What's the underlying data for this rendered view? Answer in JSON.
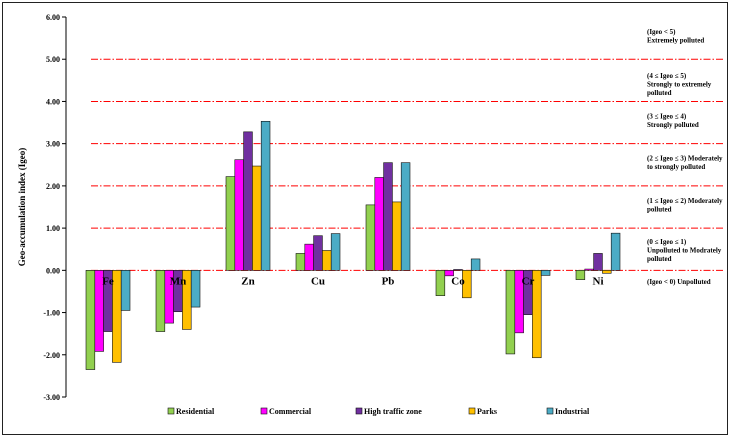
{
  "chart_data": {
    "type": "bar",
    "ylabel": "Geo-accumulation index (Igeo)",
    "xlabel": "",
    "title": "",
    "ylim": [
      -3,
      6
    ],
    "yticks": [
      "6.00",
      "5.00",
      "4.00",
      "3.00",
      "2.00",
      "1.00",
      "0.00",
      "-1.00",
      "-2.00",
      "-3.00"
    ],
    "categories": [
      "Fe",
      "Mn",
      "Zn",
      "Cu",
      "Pb",
      "Co",
      "Cr",
      "Ni"
    ],
    "series": [
      {
        "name": "Residential",
        "color": "#92d050",
        "values": [
          -2.35,
          -1.45,
          2.22,
          0.4,
          1.55,
          -0.6,
          -1.98,
          -0.22
        ]
      },
      {
        "name": "Commercial",
        "color": "#ff00ff",
        "values": [
          -1.92,
          -1.25,
          2.62,
          0.62,
          2.2,
          -0.13,
          -1.48,
          0.03
        ]
      },
      {
        "name": "High traffic zone",
        "color": "#7030a0",
        "values": [
          -1.45,
          -0.98,
          3.28,
          0.82,
          2.55,
          0.02,
          -1.05,
          0.4
        ]
      },
      {
        "name": "Parks",
        "color": "#ffc000",
        "values": [
          -2.18,
          -1.4,
          2.47,
          0.47,
          1.62,
          -0.65,
          -2.07,
          -0.07
        ]
      },
      {
        "name": "Industrial",
        "color": "#4bacc6",
        "values": [
          -0.95,
          -0.87,
          3.53,
          0.87,
          2.55,
          0.27,
          -0.12,
          0.88
        ]
      }
    ],
    "thresholds": [
      0,
      1,
      2,
      3,
      4,
      5
    ],
    "threshold_color": "#ff0000",
    "grid": false,
    "legend_position": "bottom",
    "annotations": [
      {
        "y": 5.6,
        "lines": [
          "(Igeo < 5)",
          "Extremely polluted"
        ]
      },
      {
        "y": 4.55,
        "lines": [
          "(4 ≤ Igeo ≤ 5)",
          "Strongly to extremely",
          "polluted"
        ]
      },
      {
        "y": 3.6,
        "lines": [
          "(3 ≤ Igeo ≤ 4)",
          "Strongly polluted"
        ]
      },
      {
        "y": 2.6,
        "lines": [
          "(2 ≤ Igeo ≤ 3) Moderately",
          "to strongly polluted"
        ]
      },
      {
        "y": 1.6,
        "lines": [
          "(1 ≤ Igeo ≤ 2) Moderately",
          "polluted"
        ]
      },
      {
        "y": 0.62,
        "lines": [
          "(0 ≤ Igeo ≤ 1)",
          "Unpolluted to Modrately",
          "polluted"
        ]
      },
      {
        "y": -0.32,
        "lines": [
          "(Igeo < 0) Unpolluted"
        ]
      }
    ]
  }
}
